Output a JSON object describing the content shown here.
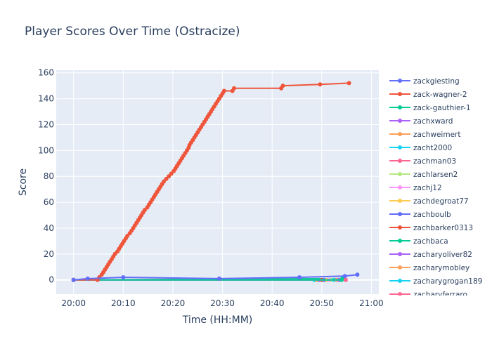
{
  "chart_data": {
    "type": "line",
    "title": "Player Scores Over Time (Ostracize)",
    "xlabel": "Time (HH:MM)",
    "ylabel": "Score",
    "x_range": [
      "19:56:30",
      "21:01:30"
    ],
    "ylim": [
      -11,
      162
    ],
    "x_ticks": [
      "20:00",
      "20:10",
      "20:20",
      "20:30",
      "20:40",
      "20:50",
      "21:00"
    ],
    "y_ticks": [
      0,
      20,
      40,
      60,
      80,
      100,
      120,
      140,
      160
    ],
    "grid": true,
    "legend": "right",
    "series": [
      {
        "name": "zackgiesting",
        "color": "#636efa",
        "points": [
          [
            "20:00:00",
            0
          ],
          [
            "20:02:50",
            1
          ],
          [
            "20:10:00",
            2
          ],
          [
            "20:29:20",
            1
          ],
          [
            "20:45:30",
            2
          ],
          [
            "20:54:40",
            3
          ],
          [
            "20:57:10",
            4
          ]
        ]
      },
      {
        "name": "zack-wagner-2",
        "color": "#EF553B",
        "points": [
          [
            "20:00:00",
            0
          ],
          [
            "20:04:50",
            0
          ],
          [
            "20:05:10",
            2
          ],
          [
            "20:05:40",
            4
          ],
          [
            "20:06:00",
            6
          ],
          [
            "20:06:20",
            8
          ],
          [
            "20:06:40",
            10
          ],
          [
            "20:07:00",
            12
          ],
          [
            "20:07:20",
            14
          ],
          [
            "20:07:40",
            16
          ],
          [
            "20:08:00",
            18
          ],
          [
            "20:08:20",
            20
          ],
          [
            "20:08:50",
            22
          ],
          [
            "20:09:10",
            24
          ],
          [
            "20:09:30",
            26
          ],
          [
            "20:09:50",
            28
          ],
          [
            "20:10:10",
            30
          ],
          [
            "20:10:30",
            32
          ],
          [
            "20:10:50",
            34
          ],
          [
            "20:11:20",
            36
          ],
          [
            "20:11:40",
            38
          ],
          [
            "20:12:00",
            40
          ],
          [
            "20:12:20",
            42
          ],
          [
            "20:12:40",
            44
          ],
          [
            "20:13:00",
            46
          ],
          [
            "20:13:20",
            48
          ],
          [
            "20:13:40",
            50
          ],
          [
            "20:14:00",
            52
          ],
          [
            "20:14:20",
            54
          ],
          [
            "20:14:50",
            56
          ],
          [
            "20:15:10",
            58
          ],
          [
            "20:15:30",
            60
          ],
          [
            "20:15:50",
            62
          ],
          [
            "20:16:10",
            64
          ],
          [
            "20:16:30",
            66
          ],
          [
            "20:16:50",
            68
          ],
          [
            "20:17:10",
            70
          ],
          [
            "20:17:30",
            72
          ],
          [
            "20:17:50",
            74
          ],
          [
            "20:18:10",
            76
          ],
          [
            "20:18:40",
            78
          ],
          [
            "20:19:10",
            80
          ],
          [
            "20:19:40",
            82
          ],
          [
            "20:20:10",
            84
          ],
          [
            "20:20:30",
            86
          ],
          [
            "20:20:50",
            88
          ],
          [
            "20:21:10",
            90
          ],
          [
            "20:21:30",
            92
          ],
          [
            "20:21:50",
            94
          ],
          [
            "20:22:10",
            96
          ],
          [
            "20:22:30",
            98
          ],
          [
            "20:22:50",
            100
          ],
          [
            "20:23:10",
            102
          ],
          [
            "20:23:20",
            104
          ],
          [
            "20:23:40",
            106
          ],
          [
            "20:24:00",
            108
          ],
          [
            "20:24:20",
            110
          ],
          [
            "20:24:40",
            112
          ],
          [
            "20:25:00",
            114
          ],
          [
            "20:25:20",
            116
          ],
          [
            "20:25:40",
            118
          ],
          [
            "20:26:00",
            120
          ],
          [
            "20:26:20",
            122
          ],
          [
            "20:26:40",
            124
          ],
          [
            "20:27:00",
            126
          ],
          [
            "20:27:20",
            128
          ],
          [
            "20:27:40",
            130
          ],
          [
            "20:28:00",
            132
          ],
          [
            "20:28:20",
            134
          ],
          [
            "20:28:40",
            136
          ],
          [
            "20:29:00",
            138
          ],
          [
            "20:29:20",
            140
          ],
          [
            "20:29:40",
            142
          ],
          [
            "20:30:00",
            144
          ],
          [
            "20:30:20",
            146
          ],
          [
            "20:32:00",
            146
          ],
          [
            "20:32:20",
            148
          ],
          [
            "20:41:50",
            148
          ],
          [
            "20:42:10",
            150
          ],
          [
            "20:49:40",
            151
          ],
          [
            "20:55:30",
            152
          ]
        ]
      },
      {
        "name": "zack-gauthier-1",
        "color": "#00cc96",
        "points": [
          [
            "20:00:00",
            0
          ],
          [
            "20:54:00",
            0
          ]
        ]
      },
      {
        "name": "zachxward",
        "color": "#ab63fa",
        "points": [
          [
            "20:00:00",
            0
          ],
          [
            "20:53:30",
            0
          ]
        ]
      },
      {
        "name": "zachweimert",
        "color": "#FFA15A",
        "points": [
          [
            "20:00:00",
            0
          ],
          [
            "20:53:00",
            0
          ]
        ]
      },
      {
        "name": "zacht2000",
        "color": "#19d3f3",
        "points": [
          [
            "20:00:00",
            0
          ],
          [
            "20:52:30",
            0
          ]
        ]
      },
      {
        "name": "zachman03",
        "color": "#FF6692",
        "points": [
          [
            "20:00:00",
            0
          ],
          [
            "20:54:50",
            0
          ]
        ]
      },
      {
        "name": "zachlarsen2",
        "color": "#B6E880",
        "points": [
          [
            "20:00:00",
            0
          ],
          [
            "20:52:00",
            0
          ]
        ]
      },
      {
        "name": "zachj12",
        "color": "#FF97FF",
        "points": [
          [
            "20:00:00",
            0
          ],
          [
            "20:51:30",
            0
          ]
        ]
      },
      {
        "name": "zachdegroat77",
        "color": "#FECB52",
        "points": [
          [
            "20:00:00",
            0
          ],
          [
            "20:51:00",
            0
          ]
        ]
      },
      {
        "name": "zachboulb",
        "color": "#636efa",
        "points": [
          [
            "20:00:00",
            0
          ],
          [
            "20:50:30",
            0
          ]
        ]
      },
      {
        "name": "zachbarker0313",
        "color": "#EF553B",
        "points": [
          [
            "20:00:00",
            0
          ],
          [
            "20:50:00",
            0
          ]
        ]
      },
      {
        "name": "zachbaca",
        "color": "#00cc96",
        "points": [
          [
            "20:00:00",
            0
          ],
          [
            "20:54:10",
            1
          ]
        ]
      },
      {
        "name": "zacharyoliver82",
        "color": "#ab63fa",
        "points": [
          [
            "20:00:00",
            0
          ],
          [
            "20:49:30",
            0
          ]
        ]
      },
      {
        "name": "zacharymobley",
        "color": "#FFA15A",
        "points": [
          [
            "20:00:00",
            0
          ],
          [
            "20:49:00",
            0
          ]
        ]
      },
      {
        "name": "zacharygrogan189",
        "color": "#19d3f3",
        "points": [
          [
            "20:00:00",
            0
          ],
          [
            "20:48:30",
            0
          ]
        ]
      },
      {
        "name": "zacharyferraro",
        "color": "#FF6692",
        "points": [
          [
            "20:00:00",
            0
          ],
          [
            "20:54:40",
            1
          ]
        ]
      }
    ]
  }
}
